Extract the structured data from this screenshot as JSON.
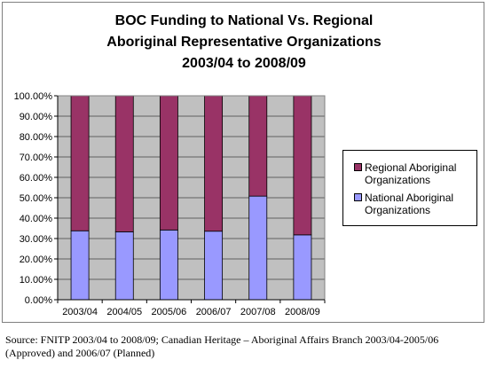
{
  "chart_data": {
    "type": "bar",
    "stacked": true,
    "percent": true,
    "title": "BOC Funding to National Vs. Regional Aboriginal Representative Organizations 2003/04 to 2008/09",
    "title_lines": [
      "BOC Funding to National Vs. Regional",
      "Aboriginal Representative Organizations",
      "2003/04 to 2008/09"
    ],
    "categories": [
      "2003/04",
      "2004/05",
      "2005/06",
      "2006/07",
      "2007/08",
      "2008/09"
    ],
    "series": [
      {
        "name": "National Aboriginal Organizations",
        "name_lines": [
          "National Aboriginal",
          "Organizations"
        ],
        "color": "#9999ff",
        "values": [
          33.8,
          33.3,
          34.2,
          33.6,
          50.8,
          31.8
        ]
      },
      {
        "name": "Regional Aboriginal Organizations",
        "name_lines": [
          "Regional Aboriginal",
          "Organizations"
        ],
        "color": "#993366",
        "values": [
          66.2,
          66.7,
          65.8,
          66.4,
          49.2,
          68.2
        ]
      }
    ],
    "ylim": [
      0,
      100
    ],
    "yticks": [
      "0.00%",
      "10.00%",
      "20.00%",
      "30.00%",
      "40.00%",
      "50.00%",
      "60.00%",
      "70.00%",
      "80.00%",
      "90.00%",
      "100.00%"
    ],
    "plot_background": "#c0c0c0",
    "grid": true,
    "legend_position": "right"
  },
  "source_note": "Source:  FNITP 2003/04 to 2008/09; Canadian Heritage – Aboriginal Affairs Branch 2003/04-2005/06 (Approved) and 2006/07 (Planned)"
}
